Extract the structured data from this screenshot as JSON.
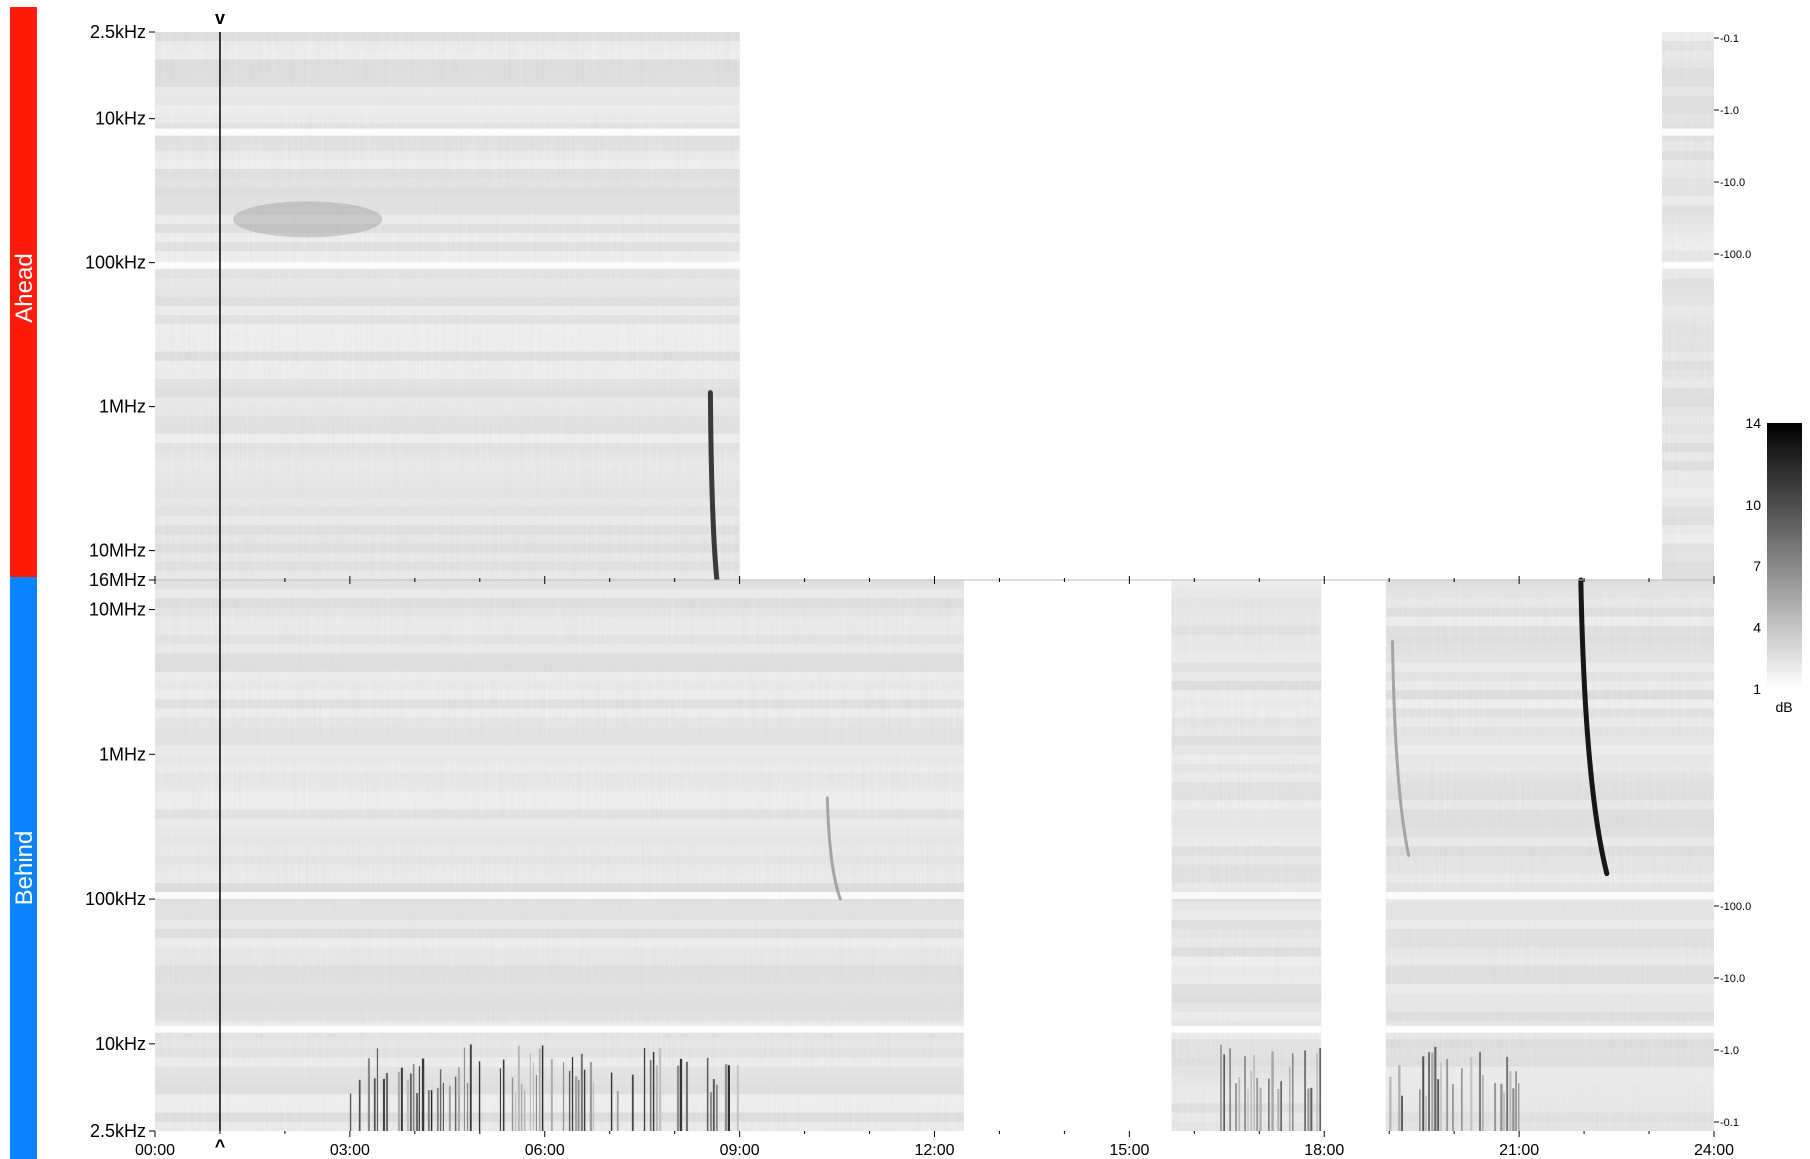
{
  "chart_data": {
    "type": "heatmap",
    "colormap": "grayscale (white = low, black = high)",
    "x_range_hours": [
      0,
      24
    ],
    "x_ticks": [
      "00:00",
      "03:00",
      "06:00",
      "09:00",
      "12:00",
      "15:00",
      "18:00",
      "21:00",
      "24:00"
    ],
    "panels": [
      {
        "label": "Ahead",
        "label_color": "#ff1a0a",
        "frequency_ticks": [
          "2.5kHz",
          "10kHz",
          "100kHz",
          "1MHz",
          "10MHz",
          "16MHz"
        ],
        "frequency_tick_values_hz": [
          2500,
          10000,
          100000,
          1000000,
          10000000,
          16000000
        ],
        "frequency_axis_direction": "increasing downward",
        "right_ticks": [
          "-0.1",
          "-1.0",
          "-10.0",
          "-100.0"
        ],
        "data_coverage_hours": [
          [
            0,
            9.0
          ],
          [
            23.2,
            24
          ]
        ],
        "marker_hour": 1.0,
        "features": [
          {
            "type": "burst",
            "start_hour": 8.55,
            "freq_start_hz": 800000,
            "freq_end_hz": 16000000,
            "intensity_db": 12
          },
          {
            "type": "diffuse",
            "start_hour": 1.2,
            "end_hour": 3.5,
            "freq_center_hz": 50000,
            "intensity_db": 7
          }
        ]
      },
      {
        "label": "Behind",
        "label_color": "#0a84ff",
        "frequency_ticks": [
          "10MHz",
          "1MHz",
          "100kHz",
          "10kHz",
          "2.5kHz"
        ],
        "frequency_tick_values_hz": [
          10000000,
          1000000,
          100000,
          10000,
          2500
        ],
        "frequency_axis_direction": "decreasing downward",
        "right_ticks": [
          "-100.0",
          "-10.0",
          "-1.0",
          "-0.1"
        ],
        "data_coverage_hours": [
          [
            0,
            12.45
          ],
          [
            15.65,
            17.95
          ],
          [
            18.95,
            24
          ]
        ],
        "marker_hour": 1.0,
        "features": [
          {
            "type": "burst",
            "start_hour": 21.95,
            "end_hour": 22.35,
            "freq_start_hz": 16000000,
            "freq_end_hz": 150000,
            "intensity_db": 14
          },
          {
            "type": "burst",
            "start_hour": 19.05,
            "end_hour": 19.3,
            "freq_start_hz": 6000000,
            "freq_end_hz": 200000,
            "intensity_db": 6
          },
          {
            "type": "burst",
            "start_hour": 10.35,
            "end_hour": 10.55,
            "freq_start_hz": 500000,
            "freq_end_hz": 100000,
            "intensity_db": 6
          },
          {
            "type": "striations",
            "start_hour": 3.0,
            "end_hour": 9.0,
            "freq_range_hz": [
              2500,
              10000
            ],
            "intensity_db": 12
          },
          {
            "type": "striations",
            "start_hour": 16.4,
            "end_hour": 17.95,
            "freq_range_hz": [
              2500,
              10000
            ],
            "intensity_db": 11
          },
          {
            "type": "striations",
            "start_hour": 19.0,
            "end_hour": 21.0,
            "freq_range_hz": [
              2500,
              10000
            ],
            "intensity_db": 11
          }
        ]
      }
    ],
    "colorbar": {
      "ticks": [
        "14",
        "10",
        "7",
        "4",
        "1"
      ],
      "tick_values": [
        14,
        10,
        7,
        4,
        1
      ],
      "range_db": [
        1,
        14
      ],
      "unit": "dB"
    },
    "marker_symbols": {
      "top": "v",
      "bottom": "^"
    }
  }
}
